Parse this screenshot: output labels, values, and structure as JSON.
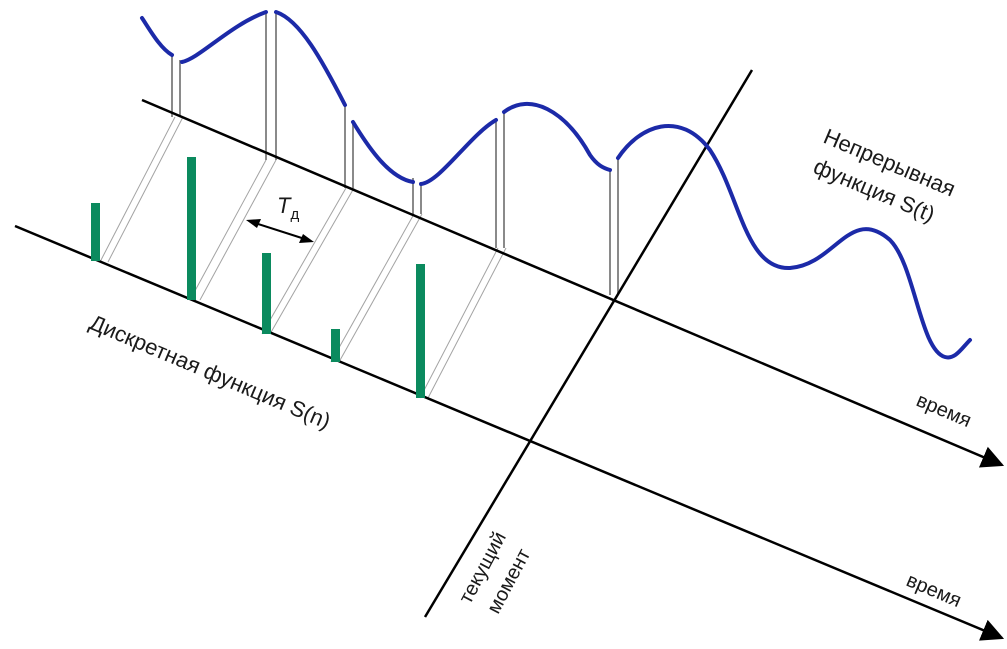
{
  "labels": {
    "continuous_line1": "Непрерывная",
    "continuous_line2": "функция S(t)",
    "discrete": "Дискретная функция S(n)",
    "period_T": "T",
    "period_sub": "д",
    "time_upper": "время",
    "time_lower": "время",
    "current_line1": "текущий",
    "current_line2": "момент"
  },
  "colors": {
    "curve": "#1c2aa8",
    "bar": "#0b8a5e",
    "axis": "#000000",
    "projection": "#999999",
    "drop_line": "#8c8c8c"
  }
}
